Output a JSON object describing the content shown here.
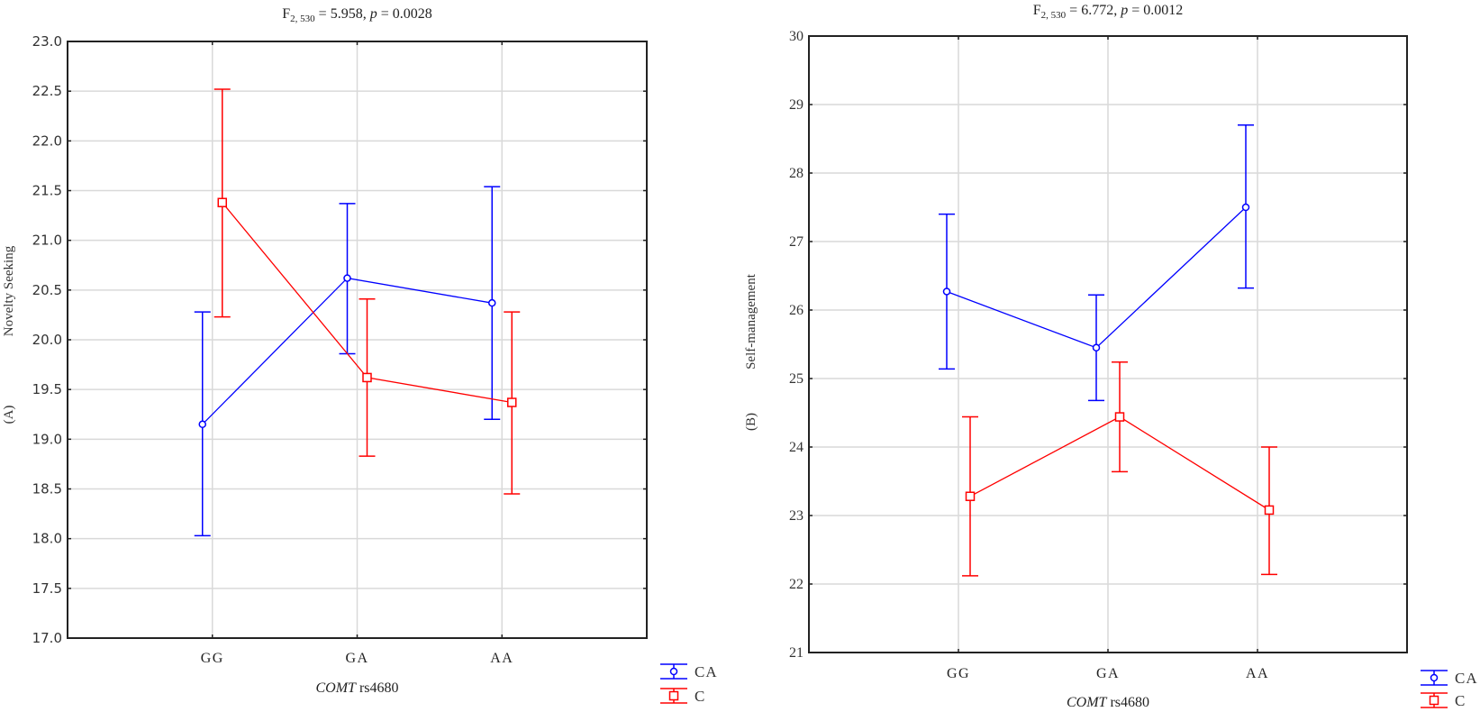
{
  "chart_data": [
    {
      "type": "line",
      "panel_label": "(A)",
      "title": {
        "prefix": "F",
        "sub": "2, 530",
        "mid": " = 5.958, ",
        "p": "p",
        "rest": " = 0.0028"
      },
      "xlabel": {
        "italic": "COMT",
        "rest": " rs4680"
      },
      "ylabel": "Novelty Seeking",
      "categories": [
        "GG",
        "GA",
        "AA"
      ],
      "ylim": [
        17.0,
        23.0
      ],
      "yticks": [
        "17.0",
        "17.5",
        "18.0",
        "18.5",
        "19.0",
        "19.5",
        "20.0",
        "20.5",
        "21.0",
        "21.5",
        "22.0",
        "22.5",
        "23.0"
      ],
      "grid": true,
      "legend_placement": "bottom-right",
      "series": [
        {
          "name": "CA",
          "color": "#0000ff",
          "marker": "circle",
          "values": [
            19.15,
            20.62,
            20.37
          ],
          "lower": [
            18.03,
            19.86,
            19.2
          ],
          "upper": [
            20.28,
            21.37,
            21.54
          ]
        },
        {
          "name": "C",
          "color": "#ff0000",
          "marker": "square",
          "values": [
            21.38,
            19.62,
            19.37
          ],
          "lower": [
            20.23,
            18.83,
            18.45
          ],
          "upper": [
            22.52,
            20.41,
            20.28
          ]
        }
      ]
    },
    {
      "type": "line",
      "panel_label": "(B)",
      "title": {
        "prefix": "F",
        "sub": "2, 530",
        "mid": " = 6.772, ",
        "p": "p",
        "rest": " = 0.0012"
      },
      "xlabel": {
        "italic": "COMT",
        "rest": " rs4680"
      },
      "ylabel": "Self-management",
      "categories": [
        "GG",
        "GA",
        "AA"
      ],
      "ylim": [
        21,
        30
      ],
      "yticks": [
        "21",
        "22",
        "23",
        "24",
        "25",
        "26",
        "27",
        "28",
        "29",
        "30"
      ],
      "grid": true,
      "legend_placement": "bottom-right",
      "series": [
        {
          "name": "CA",
          "color": "#0000ff",
          "marker": "circle",
          "values": [
            26.27,
            25.45,
            27.5
          ],
          "lower": [
            25.14,
            24.68,
            26.32
          ],
          "upper": [
            27.4,
            26.22,
            28.7
          ]
        },
        {
          "name": "C",
          "color": "#ff0000",
          "marker": "square",
          "values": [
            23.28,
            24.44,
            23.08
          ],
          "lower": [
            22.12,
            23.64,
            22.14
          ],
          "upper": [
            24.44,
            25.24,
            24.0
          ]
        }
      ]
    }
  ]
}
